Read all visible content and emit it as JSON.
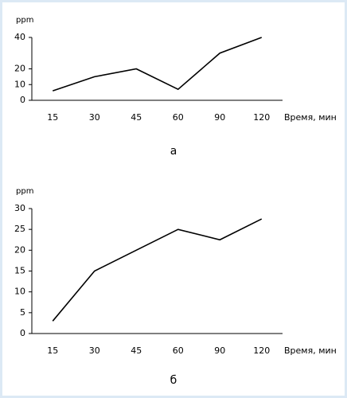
{
  "chart_data": [
    {
      "type": "line",
      "ylabel": "ppm",
      "xlabel": "Время, мин",
      "caption": "а",
      "categories": [
        "15",
        "30",
        "45",
        "60",
        "90",
        "120"
      ],
      "series": [
        {
          "color": "#000000",
          "values": [
            6,
            15,
            20,
            7,
            30,
            40
          ]
        }
      ],
      "ylim": [
        0,
        40
      ],
      "yticks": [
        0,
        10,
        20,
        40
      ]
    },
    {
      "type": "line",
      "ylabel": "ppm",
      "xlabel": "Время, мин",
      "caption": "б",
      "categories": [
        "15",
        "30",
        "45",
        "60",
        "90",
        "120"
      ],
      "series": [
        {
          "color": "#000000",
          "values": [
            3,
            15,
            20,
            25,
            22.5,
            27.5
          ]
        }
      ],
      "ylim": [
        0,
        30
      ],
      "yticks": [
        0,
        5,
        10,
        15,
        20,
        25,
        30
      ]
    }
  ]
}
